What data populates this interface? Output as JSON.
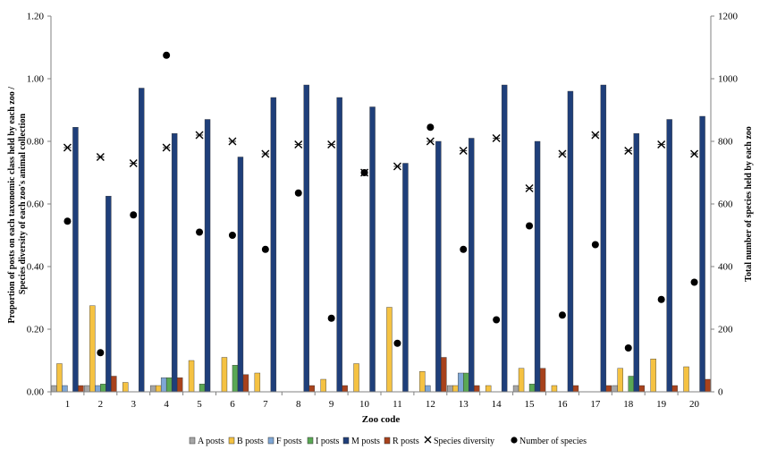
{
  "chart_data": {
    "type": "bar",
    "xlabel": "Zoo code",
    "ylabel": "Proportion of posts on each taxonomic class held by each zoo / Species diversity of each zoo's animal collection",
    "ylabel_lines": [
      "Proportion of posts on each taxonomic class held by each zoo /",
      "Species diversity of each zoo's animal collection"
    ],
    "y2label": "Total number of species held by each zoo",
    "ylim": [
      0,
      1.2
    ],
    "y2lim": [
      0,
      1200
    ],
    "yticks": [
      "0.00",
      "0.20",
      "0.40",
      "0.60",
      "0.80",
      "1.00",
      "1.20"
    ],
    "y2ticks": [
      "0",
      "200",
      "400",
      "600",
      "800",
      "1000",
      "1200"
    ],
    "categories": [
      "1",
      "2",
      "3",
      "4",
      "5",
      "6",
      "7",
      "8",
      "9",
      "10",
      "11",
      "12",
      "13",
      "14",
      "15",
      "16",
      "17",
      "18",
      "19",
      "20"
    ],
    "series": [
      {
        "name": "A posts",
        "color": "#a6a6a6",
        "values": [
          0.02,
          0.02,
          0,
          0.02,
          0,
          0,
          0,
          0,
          0,
          0,
          0,
          0,
          0.02,
          0,
          0.02,
          0,
          0,
          0.02,
          0,
          0
        ]
      },
      {
        "name": "B posts",
        "color": "#f5c242",
        "values": [
          0.09,
          0.275,
          0.03,
          0.02,
          0.1,
          0.11,
          0.06,
          0,
          0.04,
          0.09,
          0.27,
          0.065,
          0.02,
          0.02,
          0.075,
          0.02,
          0,
          0.075,
          0.105,
          0.08
        ]
      },
      {
        "name": "F posts",
        "color": "#7fa7d6",
        "values": [
          0.02,
          0.02,
          0,
          0.045,
          0,
          0,
          0,
          0,
          0,
          0,
          0,
          0.02,
          0.06,
          0,
          0,
          0,
          0,
          0,
          0,
          0
        ]
      },
      {
        "name": "I posts",
        "color": "#5aa854",
        "values": [
          0,
          0.025,
          0,
          0.045,
          0.025,
          0.085,
          0,
          0,
          0,
          0,
          0,
          0,
          0.06,
          0,
          0.025,
          0,
          0,
          0.05,
          0,
          0
        ]
      },
      {
        "name": "M posts",
        "color": "#1f3f7a",
        "values": [
          0.845,
          0.625,
          0.97,
          0.825,
          0.87,
          0.75,
          0.94,
          0.98,
          0.94,
          0.91,
          0.73,
          0.8,
          0.81,
          0.98,
          0.8,
          0.96,
          0.98,
          0.825,
          0.87,
          0.88
        ]
      },
      {
        "name": "R posts",
        "color": "#a8421c",
        "values": [
          0.02,
          0.05,
          0,
          0.045,
          0,
          0.055,
          0,
          0.02,
          0.02,
          0,
          0,
          0.11,
          0.02,
          0,
          0.075,
          0.02,
          0.02,
          0.02,
          0.02,
          0.04
        ]
      }
    ],
    "species_diversity": {
      "name": "Species diversity",
      "marker": "x",
      "values": [
        0.78,
        0.75,
        0.73,
        0.78,
        0.82,
        0.8,
        0.76,
        0.79,
        0.79,
        0.7,
        0.72,
        0.8,
        0.77,
        0.81,
        0.65,
        0.76,
        0.82,
        0.77,
        0.79,
        0.76
      ]
    },
    "number_of_species": {
      "name": "Number of species",
      "marker": "circle",
      "axis": "right",
      "values": [
        545,
        125,
        565,
        1075,
        510,
        500,
        455,
        635,
        235,
        700,
        155,
        845,
        455,
        230,
        530,
        245,
        470,
        140,
        295,
        350
      ]
    },
    "legend": "bottom"
  }
}
